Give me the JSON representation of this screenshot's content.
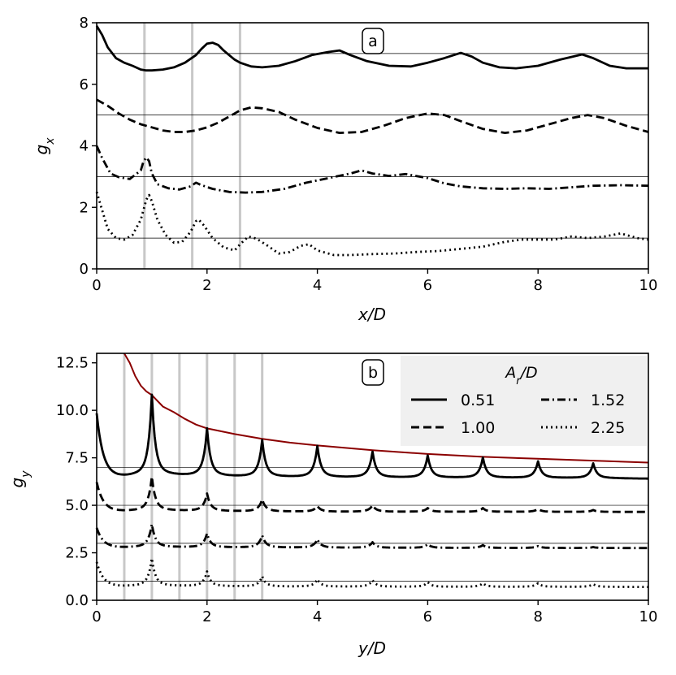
{
  "chart_data": [
    {
      "type": "line",
      "panel_label": "a",
      "xlabel": "x/D",
      "ylabel_main": "g",
      "ylabel_sub": "x",
      "xlim": [
        0,
        10
      ],
      "ylim": [
        0,
        8
      ],
      "xticks": [
        "0",
        "2",
        "4",
        "6",
        "8",
        "10"
      ],
      "yticks": [
        "0",
        "2",
        "4",
        "6",
        "8"
      ],
      "reference_lines_y": [
        1,
        3,
        5,
        7
      ],
      "vertical_markers_x": [
        0.866,
        1.732,
        2.598
      ],
      "series": [
        {
          "style": "solid",
          "x": [
            0,
            0.1,
            0.2,
            0.35,
            0.5,
            0.65,
            0.8,
            0.9,
            1.0,
            1.2,
            1.4,
            1.6,
            1.8,
            1.9,
            2.0,
            2.1,
            2.2,
            2.3,
            2.4,
            2.5,
            2.6,
            2.8,
            3.0,
            3.3,
            3.6,
            3.9,
            4.2,
            4.4,
            4.6,
            4.9,
            5.3,
            5.7,
            6.0,
            6.3,
            6.6,
            6.8,
            7.0,
            7.3,
            7.6,
            8.0,
            8.4,
            8.8,
            9.0,
            9.3,
            9.6,
            10.0
          ],
          "y": [
            7.9,
            7.6,
            7.2,
            6.85,
            6.7,
            6.6,
            6.48,
            6.45,
            6.45,
            6.48,
            6.55,
            6.7,
            6.95,
            7.15,
            7.32,
            7.35,
            7.28,
            7.1,
            6.95,
            6.8,
            6.7,
            6.58,
            6.55,
            6.6,
            6.75,
            6.95,
            7.05,
            7.1,
            6.95,
            6.75,
            6.6,
            6.58,
            6.7,
            6.85,
            7.02,
            6.9,
            6.7,
            6.55,
            6.52,
            6.6,
            6.8,
            6.97,
            6.85,
            6.6,
            6.52,
            6.52
          ]
        },
        {
          "style": "dashed",
          "x": [
            0,
            0.2,
            0.4,
            0.6,
            0.8,
            1.0,
            1.2,
            1.4,
            1.6,
            1.8,
            2.0,
            2.2,
            2.4,
            2.6,
            2.8,
            3.0,
            3.3,
            3.6,
            4.0,
            4.4,
            4.8,
            5.2,
            5.6,
            6.0,
            6.3,
            6.6,
            7.0,
            7.4,
            7.8,
            8.2,
            8.6,
            8.9,
            9.2,
            9.6,
            10.0
          ],
          "y": [
            5.5,
            5.3,
            5.05,
            4.85,
            4.7,
            4.6,
            4.5,
            4.45,
            4.45,
            4.5,
            4.6,
            4.75,
            4.95,
            5.15,
            5.25,
            5.22,
            5.1,
            4.85,
            4.58,
            4.42,
            4.45,
            4.65,
            4.9,
            5.05,
            5.0,
            4.8,
            4.55,
            4.42,
            4.5,
            4.7,
            4.9,
            5.0,
            4.9,
            4.65,
            4.45
          ]
        },
        {
          "style": "dashdot",
          "x": [
            0,
            0.1,
            0.25,
            0.4,
            0.6,
            0.8,
            0.85,
            0.9,
            0.95,
            1.0,
            1.1,
            1.3,
            1.5,
            1.7,
            1.8,
            1.9,
            2.1,
            2.4,
            2.7,
            3.0,
            3.4,
            3.8,
            4.2,
            4.6,
            4.8,
            5.0,
            5.3,
            5.6,
            6.0,
            6.3,
            6.6,
            7.0,
            7.4,
            7.8,
            8.2,
            8.6,
            9.0,
            9.5,
            10.0
          ],
          "y": [
            4.0,
            3.6,
            3.1,
            2.98,
            2.92,
            3.2,
            3.5,
            3.62,
            3.5,
            3.1,
            2.75,
            2.62,
            2.58,
            2.68,
            2.8,
            2.72,
            2.6,
            2.5,
            2.48,
            2.5,
            2.6,
            2.8,
            2.95,
            3.1,
            3.2,
            3.1,
            3.02,
            3.08,
            2.95,
            2.78,
            2.68,
            2.62,
            2.6,
            2.62,
            2.6,
            2.65,
            2.7,
            2.72,
            2.7
          ]
        },
        {
          "style": "dotted",
          "x": [
            0,
            0.1,
            0.2,
            0.35,
            0.5,
            0.65,
            0.8,
            0.9,
            0.95,
            1.0,
            1.1,
            1.25,
            1.4,
            1.55,
            1.7,
            1.8,
            1.85,
            1.95,
            2.1,
            2.3,
            2.5,
            2.6,
            2.75,
            2.9,
            3.1,
            3.3,
            3.5,
            3.7,
            3.85,
            4.0,
            4.3,
            4.6,
            5.0,
            5.4,
            5.8,
            6.2,
            6.6,
            7.0,
            7.4,
            7.7,
            8.0,
            8.3,
            8.6,
            8.9,
            9.2,
            9.5,
            9.8,
            10.0
          ],
          "y": [
            2.5,
            1.9,
            1.3,
            1.0,
            0.95,
            1.1,
            1.6,
            2.25,
            2.4,
            2.2,
            1.6,
            1.1,
            0.85,
            0.88,
            1.2,
            1.55,
            1.6,
            1.4,
            1.0,
            0.7,
            0.6,
            0.8,
            1.05,
            0.98,
            0.75,
            0.5,
            0.55,
            0.75,
            0.8,
            0.6,
            0.45,
            0.45,
            0.48,
            0.5,
            0.55,
            0.58,
            0.65,
            0.72,
            0.88,
            0.95,
            0.95,
            0.95,
            1.05,
            1.0,
            1.05,
            1.15,
            1.0,
            0.95
          ]
        }
      ]
    },
    {
      "type": "line",
      "panel_label": "b",
      "xlabel": "y/D",
      "ylabel_main": "g",
      "ylabel_sub": "y",
      "xlim": [
        0,
        10
      ],
      "ylim": [
        0,
        13
      ],
      "xticks": [
        "0",
        "2",
        "4",
        "6",
        "8",
        "10"
      ],
      "yticks": [
        "0.0",
        "2.5",
        "5.0",
        "7.5",
        "10.0",
        "12.5"
      ],
      "reference_lines_y": [
        1,
        3,
        5,
        7
      ],
      "vertical_markers_x": [
        0.5,
        1.0,
        1.5,
        2.0,
        2.5,
        3.0
      ],
      "envelope": {
        "color": "#8b0000",
        "x": [
          0.5,
          0.6,
          0.7,
          0.8,
          0.9,
          1.0,
          1.2,
          1.4,
          1.6,
          1.8,
          2.0,
          2.5,
          3.0,
          3.5,
          4.0,
          5.0,
          6.0,
          7.0,
          8.0,
          9.0,
          10.0
        ],
        "y": [
          13.5,
          12.5,
          11.8,
          11.3,
          11.0,
          10.8,
          10.2,
          9.9,
          9.55,
          9.25,
          9.05,
          8.75,
          8.5,
          8.3,
          8.15,
          7.9,
          7.7,
          7.55,
          7.45,
          7.35,
          7.25
        ]
      },
      "legend": {
        "title_main": "A",
        "title_sub": "r",
        "title_suffix": "/D",
        "entries": [
          {
            "label": "0.51",
            "style": "solid"
          },
          {
            "label": "1.00",
            "style": "dashed"
          },
          {
            "label": "1.52",
            "style": "dashdot"
          },
          {
            "label": "2.25",
            "style": "dotted"
          }
        ],
        "placement": "top-right"
      },
      "series": [
        {
          "style": "solid",
          "peaks_at": [
            1,
            2,
            3,
            4,
            5,
            6,
            7,
            8,
            9
          ],
          "peak_values": [
            10.8,
            9.0,
            8.4,
            8.1,
            7.8,
            7.6,
            7.5,
            7.3,
            7.2
          ],
          "start": 9.8,
          "baseline": 6.4
        },
        {
          "style": "dashed",
          "peaks_at": [
            1,
            2,
            3,
            4,
            5,
            6,
            7,
            8,
            9
          ],
          "peak_values": [
            6.5,
            5.6,
            5.3,
            4.95,
            5.0,
            4.85,
            4.85,
            4.8,
            4.75
          ],
          "start": 6.2,
          "baseline": 4.65
        },
        {
          "style": "dashdot",
          "peaks_at": [
            1,
            2,
            3,
            4,
            5,
            6,
            7,
            8,
            9
          ],
          "peak_values": [
            4.0,
            3.5,
            3.4,
            3.2,
            3.05,
            2.95,
            2.9,
            2.85,
            2.8
          ],
          "start": 3.8,
          "baseline": 2.75
        },
        {
          "style": "dotted",
          "peaks_at": [
            1,
            2,
            3,
            4,
            5,
            6,
            7,
            8,
            9
          ],
          "peak_values": [
            2.2,
            1.5,
            1.25,
            1.1,
            1.05,
            0.95,
            0.9,
            0.9,
            0.85
          ],
          "start": 2.0,
          "baseline": 0.7
        }
      ]
    }
  ]
}
